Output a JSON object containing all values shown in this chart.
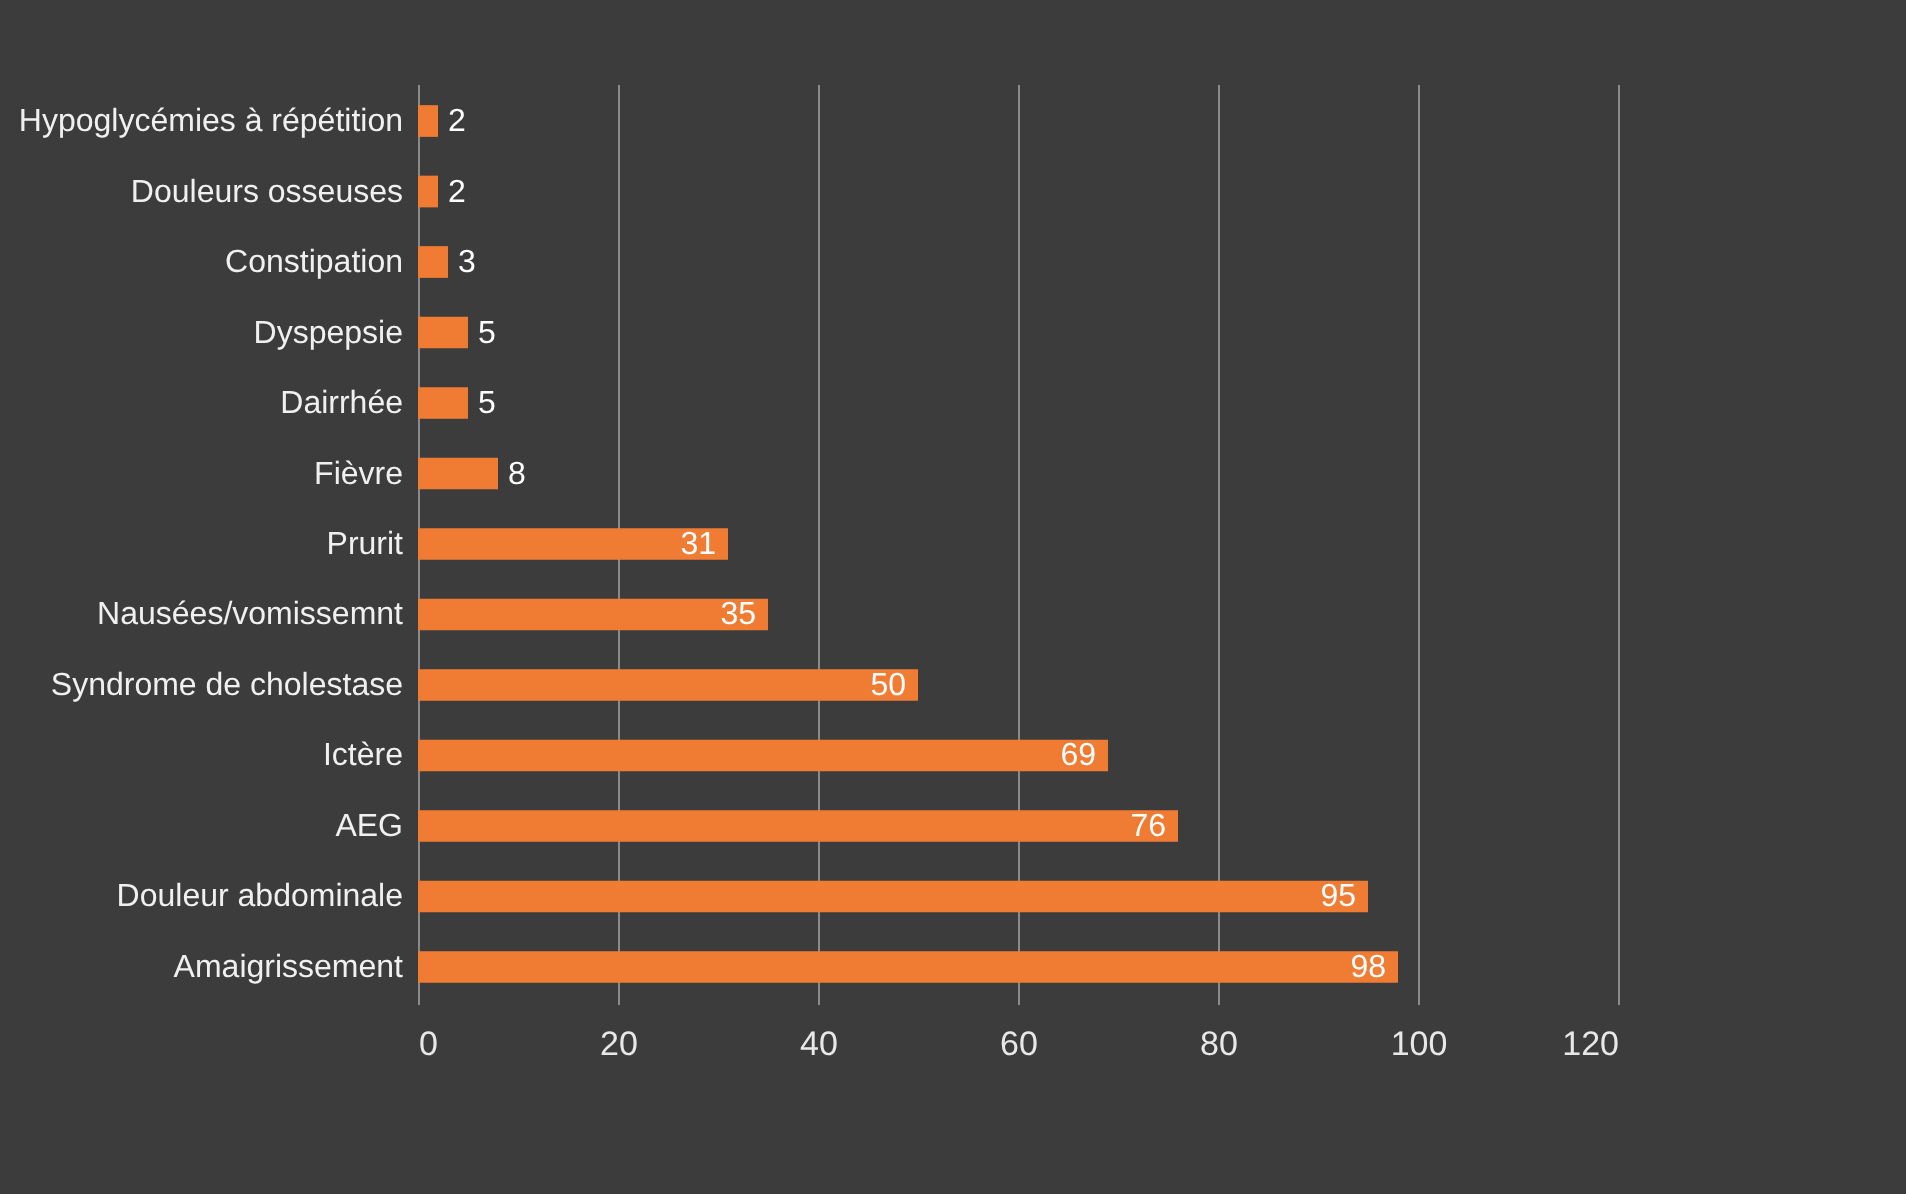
{
  "chart_data": {
    "type": "bar",
    "orientation": "horizontal",
    "categories": [
      "Hypoglycémies à répétition",
      "Douleurs osseuses",
      "Constipation",
      "Dyspepsie",
      "Dairrhée",
      "Fièvre",
      "Prurit",
      "Nausées/vomissemnt",
      "Syndrome de cholestase",
      "Ictère",
      "AEG",
      "Douleur abdominale",
      "Amaigrissement"
    ],
    "values": [
      2,
      2,
      3,
      5,
      5,
      8,
      31,
      35,
      50,
      69,
      76,
      95,
      98
    ],
    "color": "#f07c34",
    "xlim": [
      0,
      120
    ],
    "xticks": [
      0,
      20,
      40,
      60,
      80,
      100,
      120
    ],
    "grid": "x",
    "data_labels": true
  }
}
